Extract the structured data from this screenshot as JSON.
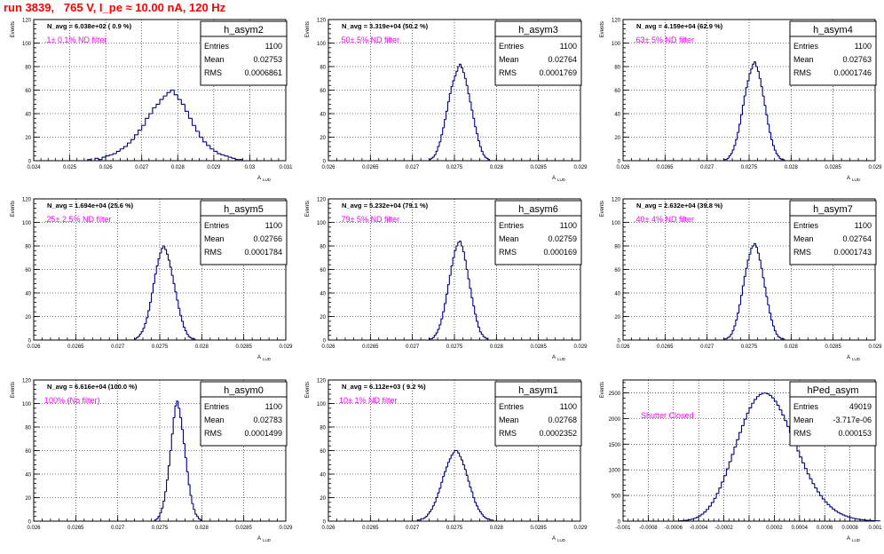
{
  "title": "run 3839,   765 V, I_pe ≈ 10.00 nA, 120 Hz",
  "colors": {
    "title": "#ff0000",
    "hist": "#000080",
    "annotation": "#ff00ff",
    "axis": "#000000",
    "grid": "#000000"
  },
  "axis_labels": {
    "y": "Events",
    "x": "A",
    "x_sub": "LUD"
  },
  "stats_labels": {
    "entries": "Entries",
    "mean": "Mean",
    "rms": "RMS"
  },
  "panels": [
    {
      "name": "h_asym2",
      "navg": "N_avg = 6.038e+02 ( 0.9 %)",
      "note": ".1± 0.1% ND filter",
      "entries": "1100",
      "mean": "0.02753",
      "rms": "0.0006861"
    },
    {
      "name": "h_asym3",
      "navg": "N_avg = 3.319e+04 (50.2 %)",
      "note": ".50± 5% ND filter",
      "entries": "1100",
      "mean": "0.02764",
      "rms": "0.0001769"
    },
    {
      "name": "h_asym4",
      "navg": "N_avg = 4.159e+04 (62.9 %)",
      "note": ".63± 5% ND filter",
      "entries": "1100",
      "mean": "0.02763",
      "rms": "0.0001746"
    },
    {
      "name": "h_asym5",
      "navg": "N_avg = 1.694e+04 (25.6 %)",
      "note": ".25± 2.5% ND filter",
      "entries": "1100",
      "mean": "0.02766",
      "rms": "0.0001784"
    },
    {
      "name": "h_asym6",
      "navg": "N_avg = 5.232e+04 (79.1 %)",
      "note": ".79± 5% ND filter",
      "entries": "1100",
      "mean": "0.02759",
      "rms": "0.000169"
    },
    {
      "name": "h_asym7",
      "navg": "N_avg = 2.632e+04 (39.8 %)",
      "note": ".40± 4% ND filter",
      "entries": "1100",
      "mean": "0.02764",
      "rms": "0.0001743"
    },
    {
      "name": "h_asym0",
      "navg": "N_avg = 6.616e+04 (100.0 %)",
      "note": "100% (No filter)",
      "entries": "1100",
      "mean": "0.02783",
      "rms": "0.0001499"
    },
    {
      "name": "h_asym1",
      "navg": "N_avg = 6.112e+03 ( 9.2 %)",
      "note": "10± 1% ND filter",
      "entries": "1100",
      "mean": "0.02768",
      "rms": "0.0002352"
    },
    {
      "name": "hPed_asym",
      "navg": "",
      "note": "Shutter Closed",
      "entries": "49019",
      "mean": "-3.717e-06",
      "rms": "0.000153"
    }
  ],
  "chart_data": [
    {
      "type": "bar",
      "title": "h_asym2",
      "ylabel": "Events",
      "xlabel": "A LUD",
      "xlim": [
        0.024,
        0.031
      ],
      "ylim": [
        0,
        120
      ],
      "grid": true,
      "legend": "top-right",
      "xticks": [
        {
          "v": 0.024,
          "l": "0.024"
        },
        {
          "v": 0.025,
          "l": "0.025"
        },
        {
          "v": 0.026,
          "l": "0.026"
        },
        {
          "v": 0.027,
          "l": "0.027"
        },
        {
          "v": 0.028,
          "l": "0.028"
        },
        {
          "v": 0.029,
          "l": "0.029"
        },
        {
          "v": 0.03,
          "l": "0.03"
        },
        {
          "v": 0.031,
          "l": "0.031"
        }
      ],
      "yticks": [
        0,
        20,
        40,
        60,
        80,
        100,
        120
      ],
      "bin_start": 0.0255,
      "bin_width": 0.0001,
      "values": [
        1,
        0,
        2,
        1,
        3,
        4,
        5,
        6,
        8,
        10,
        12,
        15,
        18,
        22,
        26,
        30,
        36,
        40,
        45,
        48,
        52,
        55,
        58,
        60,
        56,
        52,
        48,
        42,
        36,
        30,
        25,
        20,
        16,
        13,
        10,
        8,
        6,
        5,
        4,
        3,
        2,
        1,
        1
      ]
    },
    {
      "type": "bar",
      "title": "h_asym3",
      "ylabel": "Events",
      "xlabel": "A LUD",
      "xlim": [
        0.026,
        0.029
      ],
      "ylim": [
        0,
        120
      ],
      "grid": true,
      "legend": "top-right",
      "xticks": [
        {
          "v": 0.026,
          "l": "0.026"
        },
        {
          "v": 0.0265,
          "l": "0.0265"
        },
        {
          "v": 0.027,
          "l": "0.027"
        },
        {
          "v": 0.0275,
          "l": "0.0275"
        },
        {
          "v": 0.028,
          "l": "0.028"
        },
        {
          "v": 0.0285,
          "l": "0.0285"
        },
        {
          "v": 0.029,
          "l": "0.029"
        }
      ],
      "yticks": [
        0,
        20,
        40,
        60,
        80,
        100,
        120
      ],
      "bin_start": 0.0272,
      "bin_width": 2e-05,
      "values": [
        1,
        2,
        3,
        5,
        8,
        12,
        16,
        22,
        28,
        35,
        42,
        50,
        57,
        63,
        68,
        72,
        76,
        80,
        82,
        79,
        75,
        70,
        64,
        57,
        50,
        43,
        36,
        29,
        23,
        17,
        12,
        8,
        5,
        3,
        2,
        1
      ]
    },
    {
      "type": "bar",
      "title": "h_asym4",
      "ylabel": "Events",
      "xlabel": "A LUD",
      "xlim": [
        0.026,
        0.029
      ],
      "ylim": [
        0,
        120
      ],
      "grid": true,
      "legend": "top-right",
      "xticks": [
        {
          "v": 0.026,
          "l": "0.026"
        },
        {
          "v": 0.0265,
          "l": "0.0265"
        },
        {
          "v": 0.027,
          "l": "0.027"
        },
        {
          "v": 0.0275,
          "l": "0.0275"
        },
        {
          "v": 0.028,
          "l": "0.028"
        },
        {
          "v": 0.0285,
          "l": "0.0285"
        },
        {
          "v": 0.029,
          "l": "0.029"
        }
      ],
      "yticks": [
        0,
        20,
        40,
        60,
        80,
        100,
        120
      ],
      "bin_start": 0.0272,
      "bin_width": 2e-05,
      "values": [
        1,
        1,
        2,
        4,
        6,
        9,
        13,
        18,
        24,
        31,
        39,
        47,
        55,
        62,
        68,
        74,
        78,
        82,
        84,
        80,
        76,
        70,
        63,
        55,
        47,
        39,
        31,
        24,
        18,
        13,
        9,
        6,
        4,
        2,
        1,
        1
      ]
    },
    {
      "type": "bar",
      "title": "h_asym5",
      "ylabel": "Events",
      "xlabel": "A LUD",
      "xlim": [
        0.026,
        0.029
      ],
      "ylim": [
        0,
        120
      ],
      "grid": true,
      "legend": "top-right",
      "xticks": [
        {
          "v": 0.026,
          "l": "0.026"
        },
        {
          "v": 0.0265,
          "l": "0.0265"
        },
        {
          "v": 0.027,
          "l": "0.027"
        },
        {
          "v": 0.0275,
          "l": "0.0275"
        },
        {
          "v": 0.028,
          "l": "0.028"
        },
        {
          "v": 0.0285,
          "l": "0.0285"
        },
        {
          "v": 0.029,
          "l": "0.029"
        }
      ],
      "yticks": [
        0,
        20,
        40,
        60,
        80,
        100,
        120
      ],
      "bin_start": 0.0272,
      "bin_width": 2e-05,
      "values": [
        1,
        2,
        3,
        5,
        7,
        10,
        14,
        19,
        25,
        32,
        40,
        48,
        56,
        63,
        69,
        74,
        78,
        80,
        77,
        73,
        68,
        62,
        55,
        48,
        41,
        34,
        27,
        21,
        16,
        11,
        8,
        5,
        3,
        2,
        1,
        1
      ]
    },
    {
      "type": "bar",
      "title": "h_asym6",
      "ylabel": "Events",
      "xlabel": "A LUD",
      "xlim": [
        0.026,
        0.029
      ],
      "ylim": [
        0,
        120
      ],
      "grid": true,
      "legend": "top-right",
      "xticks": [
        {
          "v": 0.026,
          "l": "0.026"
        },
        {
          "v": 0.0265,
          "l": "0.0265"
        },
        {
          "v": 0.027,
          "l": "0.027"
        },
        {
          "v": 0.0275,
          "l": "0.0275"
        },
        {
          "v": 0.028,
          "l": "0.028"
        },
        {
          "v": 0.0285,
          "l": "0.0285"
        },
        {
          "v": 0.029,
          "l": "0.029"
        }
      ],
      "yticks": [
        0,
        20,
        40,
        60,
        80,
        100,
        120
      ],
      "bin_start": 0.0272,
      "bin_width": 2e-05,
      "values": [
        1,
        1,
        2,
        4,
        6,
        9,
        13,
        18,
        24,
        31,
        39,
        47,
        55,
        63,
        70,
        76,
        80,
        83,
        84,
        80,
        75,
        68,
        60,
        52,
        44,
        36,
        29,
        22,
        16,
        11,
        7,
        5,
        3,
        2,
        1
      ]
    },
    {
      "type": "bar",
      "title": "h_asym7",
      "ylabel": "Events",
      "xlabel": "A LUD",
      "xlim": [
        0.026,
        0.029
      ],
      "ylim": [
        0,
        120
      ],
      "grid": true,
      "legend": "top-right",
      "xticks": [
        {
          "v": 0.026,
          "l": "0.026"
        },
        {
          "v": 0.0265,
          "l": "0.0265"
        },
        {
          "v": 0.027,
          "l": "0.027"
        },
        {
          "v": 0.0275,
          "l": "0.0275"
        },
        {
          "v": 0.028,
          "l": "0.028"
        },
        {
          "v": 0.0285,
          "l": "0.0285"
        },
        {
          "v": 0.029,
          "l": "0.029"
        }
      ],
      "yticks": [
        0,
        20,
        40,
        60,
        80,
        100,
        120
      ],
      "bin_start": 0.0272,
      "bin_width": 2e-05,
      "values": [
        1,
        1,
        2,
        3,
        5,
        8,
        12,
        17,
        23,
        30,
        38,
        46,
        54,
        61,
        68,
        73,
        78,
        80,
        82,
        79,
        74,
        68,
        61,
        53,
        45,
        37,
        30,
        23,
        17,
        12,
        8,
        5,
        3,
        2,
        1,
        1
      ]
    },
    {
      "type": "bar",
      "title": "h_asym0",
      "ylabel": "Events",
      "xlabel": "A LUD",
      "xlim": [
        0.026,
        0.029
      ],
      "ylim": [
        0,
        120
      ],
      "grid": true,
      "legend": "top-right",
      "xticks": [
        {
          "v": 0.026,
          "l": "0.026"
        },
        {
          "v": 0.0265,
          "l": "0.0265"
        },
        {
          "v": 0.027,
          "l": "0.027"
        },
        {
          "v": 0.0275,
          "l": "0.0275"
        },
        {
          "v": 0.028,
          "l": "0.028"
        },
        {
          "v": 0.0285,
          "l": "0.0285"
        },
        {
          "v": 0.029,
          "l": "0.029"
        }
      ],
      "yticks": [
        0,
        20,
        40,
        60,
        80,
        100,
        120
      ],
      "bin_start": 0.02744,
      "bin_width": 2e-05,
      "values": [
        1,
        2,
        4,
        7,
        11,
        17,
        25,
        35,
        47,
        60,
        74,
        88,
        98,
        102,
        96,
        88,
        78,
        66,
        54,
        42,
        31,
        22,
        15,
        10,
        6,
        4,
        2,
        1
      ]
    },
    {
      "type": "bar",
      "title": "h_asym1",
      "ylabel": "Events",
      "xlabel": "A LUD",
      "xlim": [
        0.026,
        0.029
      ],
      "ylim": [
        0,
        120
      ],
      "grid": true,
      "legend": "top-right",
      "xticks": [
        {
          "v": 0.026,
          "l": "0.026"
        },
        {
          "v": 0.0265,
          "l": "0.0265"
        },
        {
          "v": 0.027,
          "l": "0.027"
        },
        {
          "v": 0.0275,
          "l": "0.0275"
        },
        {
          "v": 0.028,
          "l": "0.028"
        },
        {
          "v": 0.0285,
          "l": "0.0285"
        },
        {
          "v": 0.029,
          "l": "0.029"
        }
      ],
      "yticks": [
        0,
        20,
        40,
        60,
        80,
        100,
        120
      ],
      "bin_start": 0.02706,
      "bin_width": 2e-05,
      "values": [
        1,
        1,
        2,
        2,
        3,
        4,
        6,
        8,
        10,
        13,
        16,
        20,
        24,
        28,
        33,
        38,
        42,
        46,
        50,
        53,
        56,
        58,
        60,
        60,
        58,
        55,
        52,
        48,
        44,
        39,
        34,
        29,
        25,
        20,
        16,
        13,
        10,
        8,
        6,
        4,
        3,
        2,
        2,
        1,
        1
      ]
    },
    {
      "type": "bar",
      "title": "hPed_asym",
      "ylabel": "Events",
      "xlabel": "A LUD",
      "xlim": [
        -0.001,
        0.001
      ],
      "ylim": [
        0,
        2750
      ],
      "grid": true,
      "legend": "top-right",
      "xticks": [
        {
          "v": -0.001,
          "l": "-0.001"
        },
        {
          "v": -0.0008,
          "l": "-0.0008"
        },
        {
          "v": -0.0006,
          "l": "-0.0006"
        },
        {
          "v": -0.0004,
          "l": "-0.0004"
        },
        {
          "v": -0.0002,
          "l": "-0.0002"
        },
        {
          "v": 0,
          "l": "0"
        },
        {
          "v": 0.0002,
          "l": "0.0002"
        },
        {
          "v": 0.0004,
          "l": "0.0004"
        },
        {
          "v": 0.0006,
          "l": "0.0006"
        },
        {
          "v": 0.0008,
          "l": "0.0008"
        },
        {
          "v": 0.001,
          "l": "0.001"
        }
      ],
      "yticks": [
        0,
        500,
        1000,
        1500,
        2000,
        2500
      ],
      "bin_start": -0.00056,
      "bin_width": 2e-05,
      "values": [
        5,
        8,
        12,
        18,
        26,
        38,
        54,
        75,
        102,
        136,
        178,
        229,
        290,
        362,
        445,
        540,
        646,
        762,
        887,
        1020,
        1158,
        1300,
        1444,
        1586,
        1726,
        1860,
        1986,
        2102,
        2206,
        2296,
        2370,
        2428,
        2468,
        2490,
        2495,
        2480,
        2448,
        2400,
        2336,
        2258,
        2168,
        2068,
        1960,
        1846,
        1728,
        1608,
        1488,
        1368,
        1250,
        1136,
        1026,
        922,
        824,
        732,
        648,
        570,
        498,
        434,
        376,
        324,
        278,
        237,
        201,
        170,
        143,
        120,
        100,
        83,
        68,
        56,
        46,
        37,
        30,
        24,
        19,
        15,
        12,
        9,
        7,
        5
      ]
    }
  ]
}
